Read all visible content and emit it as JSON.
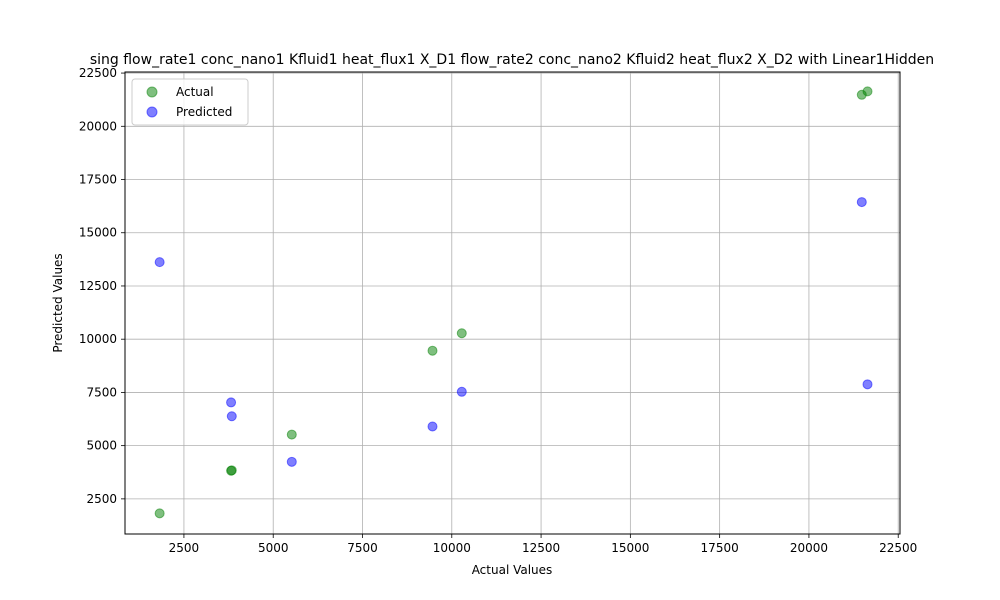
{
  "chart_data": {
    "type": "scatter",
    "title": "sing flow_rate1 conc_nano1 Kfluid1 heat_flux1 X_D1 flow_rate2 conc_nano2 Kfluid2 heat_flux2 X_D2 with Linear1Hidden",
    "xlabel": "Actual Values",
    "ylabel": "Predicted Values",
    "xlim": [
      850,
      22550
    ],
    "ylim": [
      850,
      22550
    ],
    "xticks": [
      2500,
      5000,
      7500,
      10000,
      12500,
      15000,
      17500,
      20000,
      22500
    ],
    "yticks": [
      2500,
      5000,
      7500,
      10000,
      12500,
      15000,
      17500,
      20000,
      22500
    ],
    "grid": true,
    "legend_position": "top-left",
    "series": [
      {
        "name": "Actual",
        "color": "#008000",
        "x": [
          1820,
          3820,
          3840,
          5520,
          9460,
          10280,
          21480,
          21640
        ],
        "y": [
          1820,
          3820,
          3840,
          5520,
          9460,
          10280,
          21480,
          21640
        ]
      },
      {
        "name": "Predicted",
        "color": "#0000ff",
        "x": [
          1820,
          3820,
          3840,
          5520,
          9460,
          10280,
          21480,
          21640
        ],
        "y": [
          13620,
          7030,
          6380,
          4240,
          5900,
          7530,
          16440,
          7880
        ]
      }
    ]
  }
}
